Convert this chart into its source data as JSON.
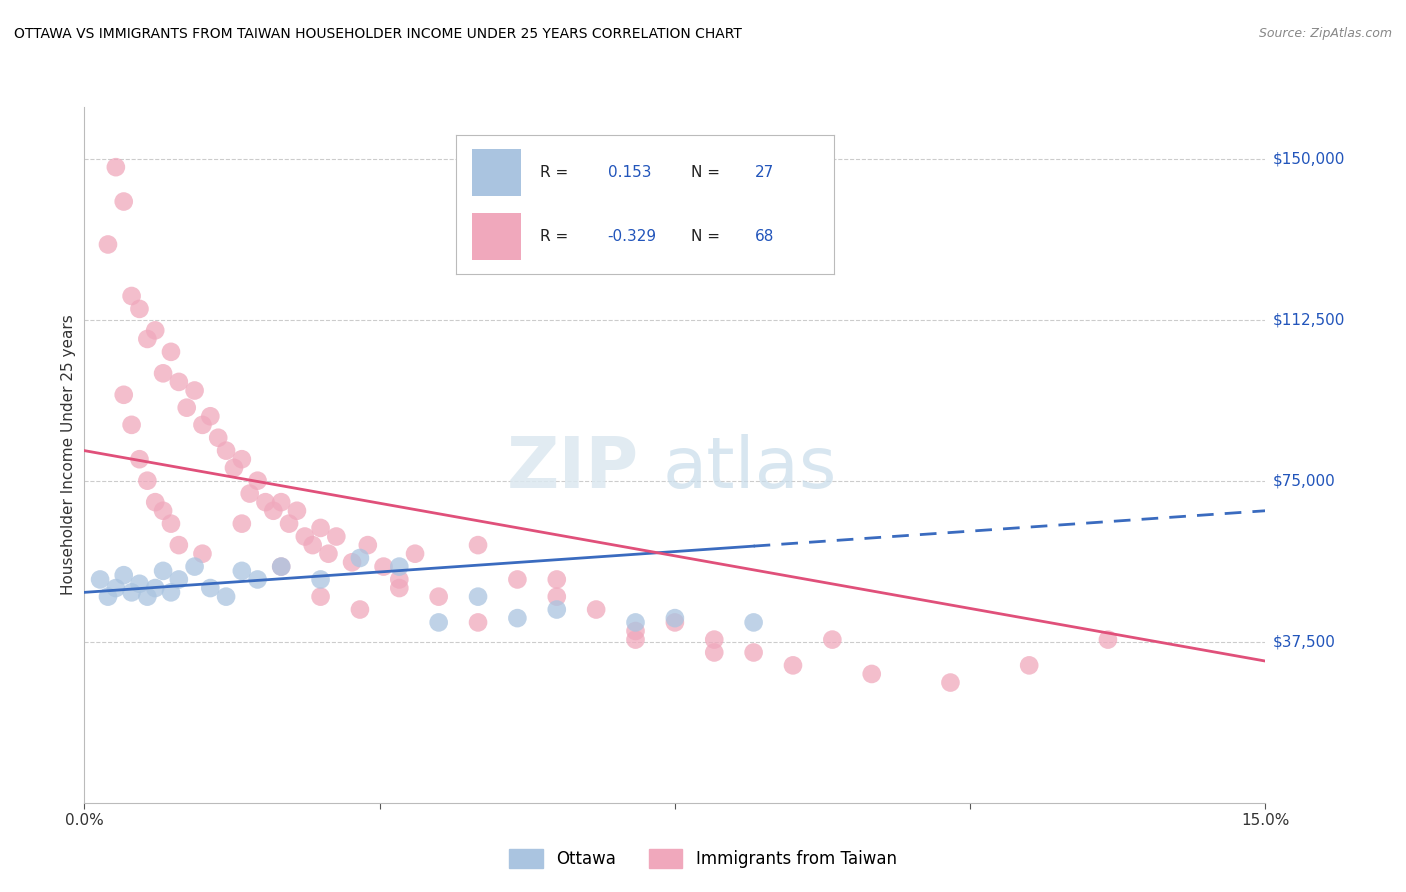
{
  "title": "OTTAWA VS IMMIGRANTS FROM TAIWAN HOUSEHOLDER INCOME UNDER 25 YEARS CORRELATION CHART",
  "source": "Source: ZipAtlas.com",
  "ylabel": "Householder Income Under 25 years",
  "yticks": [
    0,
    37500,
    75000,
    112500,
    150000
  ],
  "ytick_labels": [
    "",
    "$37,500",
    "$75,000",
    "$112,500",
    "$150,000"
  ],
  "xlim": [
    0.0,
    15.0
  ],
  "ylim": [
    0,
    162000
  ],
  "ottawa_R": 0.153,
  "ottawa_N": 27,
  "taiwan_R": -0.329,
  "taiwan_N": 68,
  "blue_color": "#aac4e0",
  "pink_color": "#f0a8bc",
  "trend_blue": "#3a6bbf",
  "trend_pink": "#e0507a",
  "label_color": "#2255bb",
  "ottawa_x": [
    0.2,
    0.3,
    0.4,
    0.5,
    0.6,
    0.7,
    0.8,
    0.9,
    1.0,
    1.1,
    1.2,
    1.4,
    1.6,
    1.8,
    2.0,
    2.2,
    2.5,
    3.0,
    3.5,
    4.0,
    4.5,
    5.0,
    5.5,
    6.0,
    7.0,
    7.5,
    8.5
  ],
  "ottawa_y": [
    52000,
    48000,
    50000,
    53000,
    49000,
    51000,
    48000,
    50000,
    54000,
    49000,
    52000,
    55000,
    50000,
    48000,
    54000,
    52000,
    55000,
    52000,
    57000,
    55000,
    42000,
    48000,
    43000,
    45000,
    42000,
    43000,
    42000
  ],
  "taiwan_x": [
    0.3,
    0.4,
    0.5,
    0.6,
    0.7,
    0.8,
    0.9,
    1.0,
    1.1,
    1.2,
    1.3,
    1.4,
    1.5,
    1.6,
    1.7,
    1.8,
    1.9,
    2.0,
    2.1,
    2.2,
    2.3,
    2.4,
    2.5,
    2.6,
    2.7,
    2.8,
    2.9,
    3.0,
    3.1,
    3.2,
    3.4,
    3.6,
    3.8,
    4.0,
    4.2,
    4.5,
    5.0,
    5.5,
    6.0,
    6.5,
    7.0,
    7.5,
    8.0,
    8.5,
    9.0,
    9.5,
    10.0,
    11.0,
    12.0,
    13.0,
    0.5,
    0.6,
    0.7,
    0.8,
    0.9,
    1.0,
    1.1,
    1.2,
    1.5,
    2.0,
    2.5,
    3.0,
    3.5,
    4.0,
    5.0,
    6.0,
    7.0,
    8.0
  ],
  "taiwan_y": [
    130000,
    148000,
    140000,
    118000,
    115000,
    108000,
    110000,
    100000,
    105000,
    98000,
    92000,
    96000,
    88000,
    90000,
    85000,
    82000,
    78000,
    80000,
    72000,
    75000,
    70000,
    68000,
    70000,
    65000,
    68000,
    62000,
    60000,
    64000,
    58000,
    62000,
    56000,
    60000,
    55000,
    52000,
    58000,
    48000,
    60000,
    52000,
    48000,
    45000,
    40000,
    42000,
    38000,
    35000,
    32000,
    38000,
    30000,
    28000,
    32000,
    38000,
    95000,
    88000,
    80000,
    75000,
    70000,
    68000,
    65000,
    60000,
    58000,
    65000,
    55000,
    48000,
    45000,
    50000,
    42000,
    52000,
    38000,
    35000
  ],
  "trend_blue_x0": 0.0,
  "trend_blue_y0": 49000,
  "trend_blue_x1": 15.0,
  "trend_blue_y1": 68000,
  "trend_blue_solid_end": 8.5,
  "trend_pink_x0": 0.0,
  "trend_pink_y0": 82000,
  "trend_pink_x1": 15.0,
  "trend_pink_y1": 33000,
  "watermark_text": "ZIPatlas",
  "legend_blue_text": "R =  0.153   N = 27",
  "legend_pink_text": "R = -0.329   N = 68"
}
